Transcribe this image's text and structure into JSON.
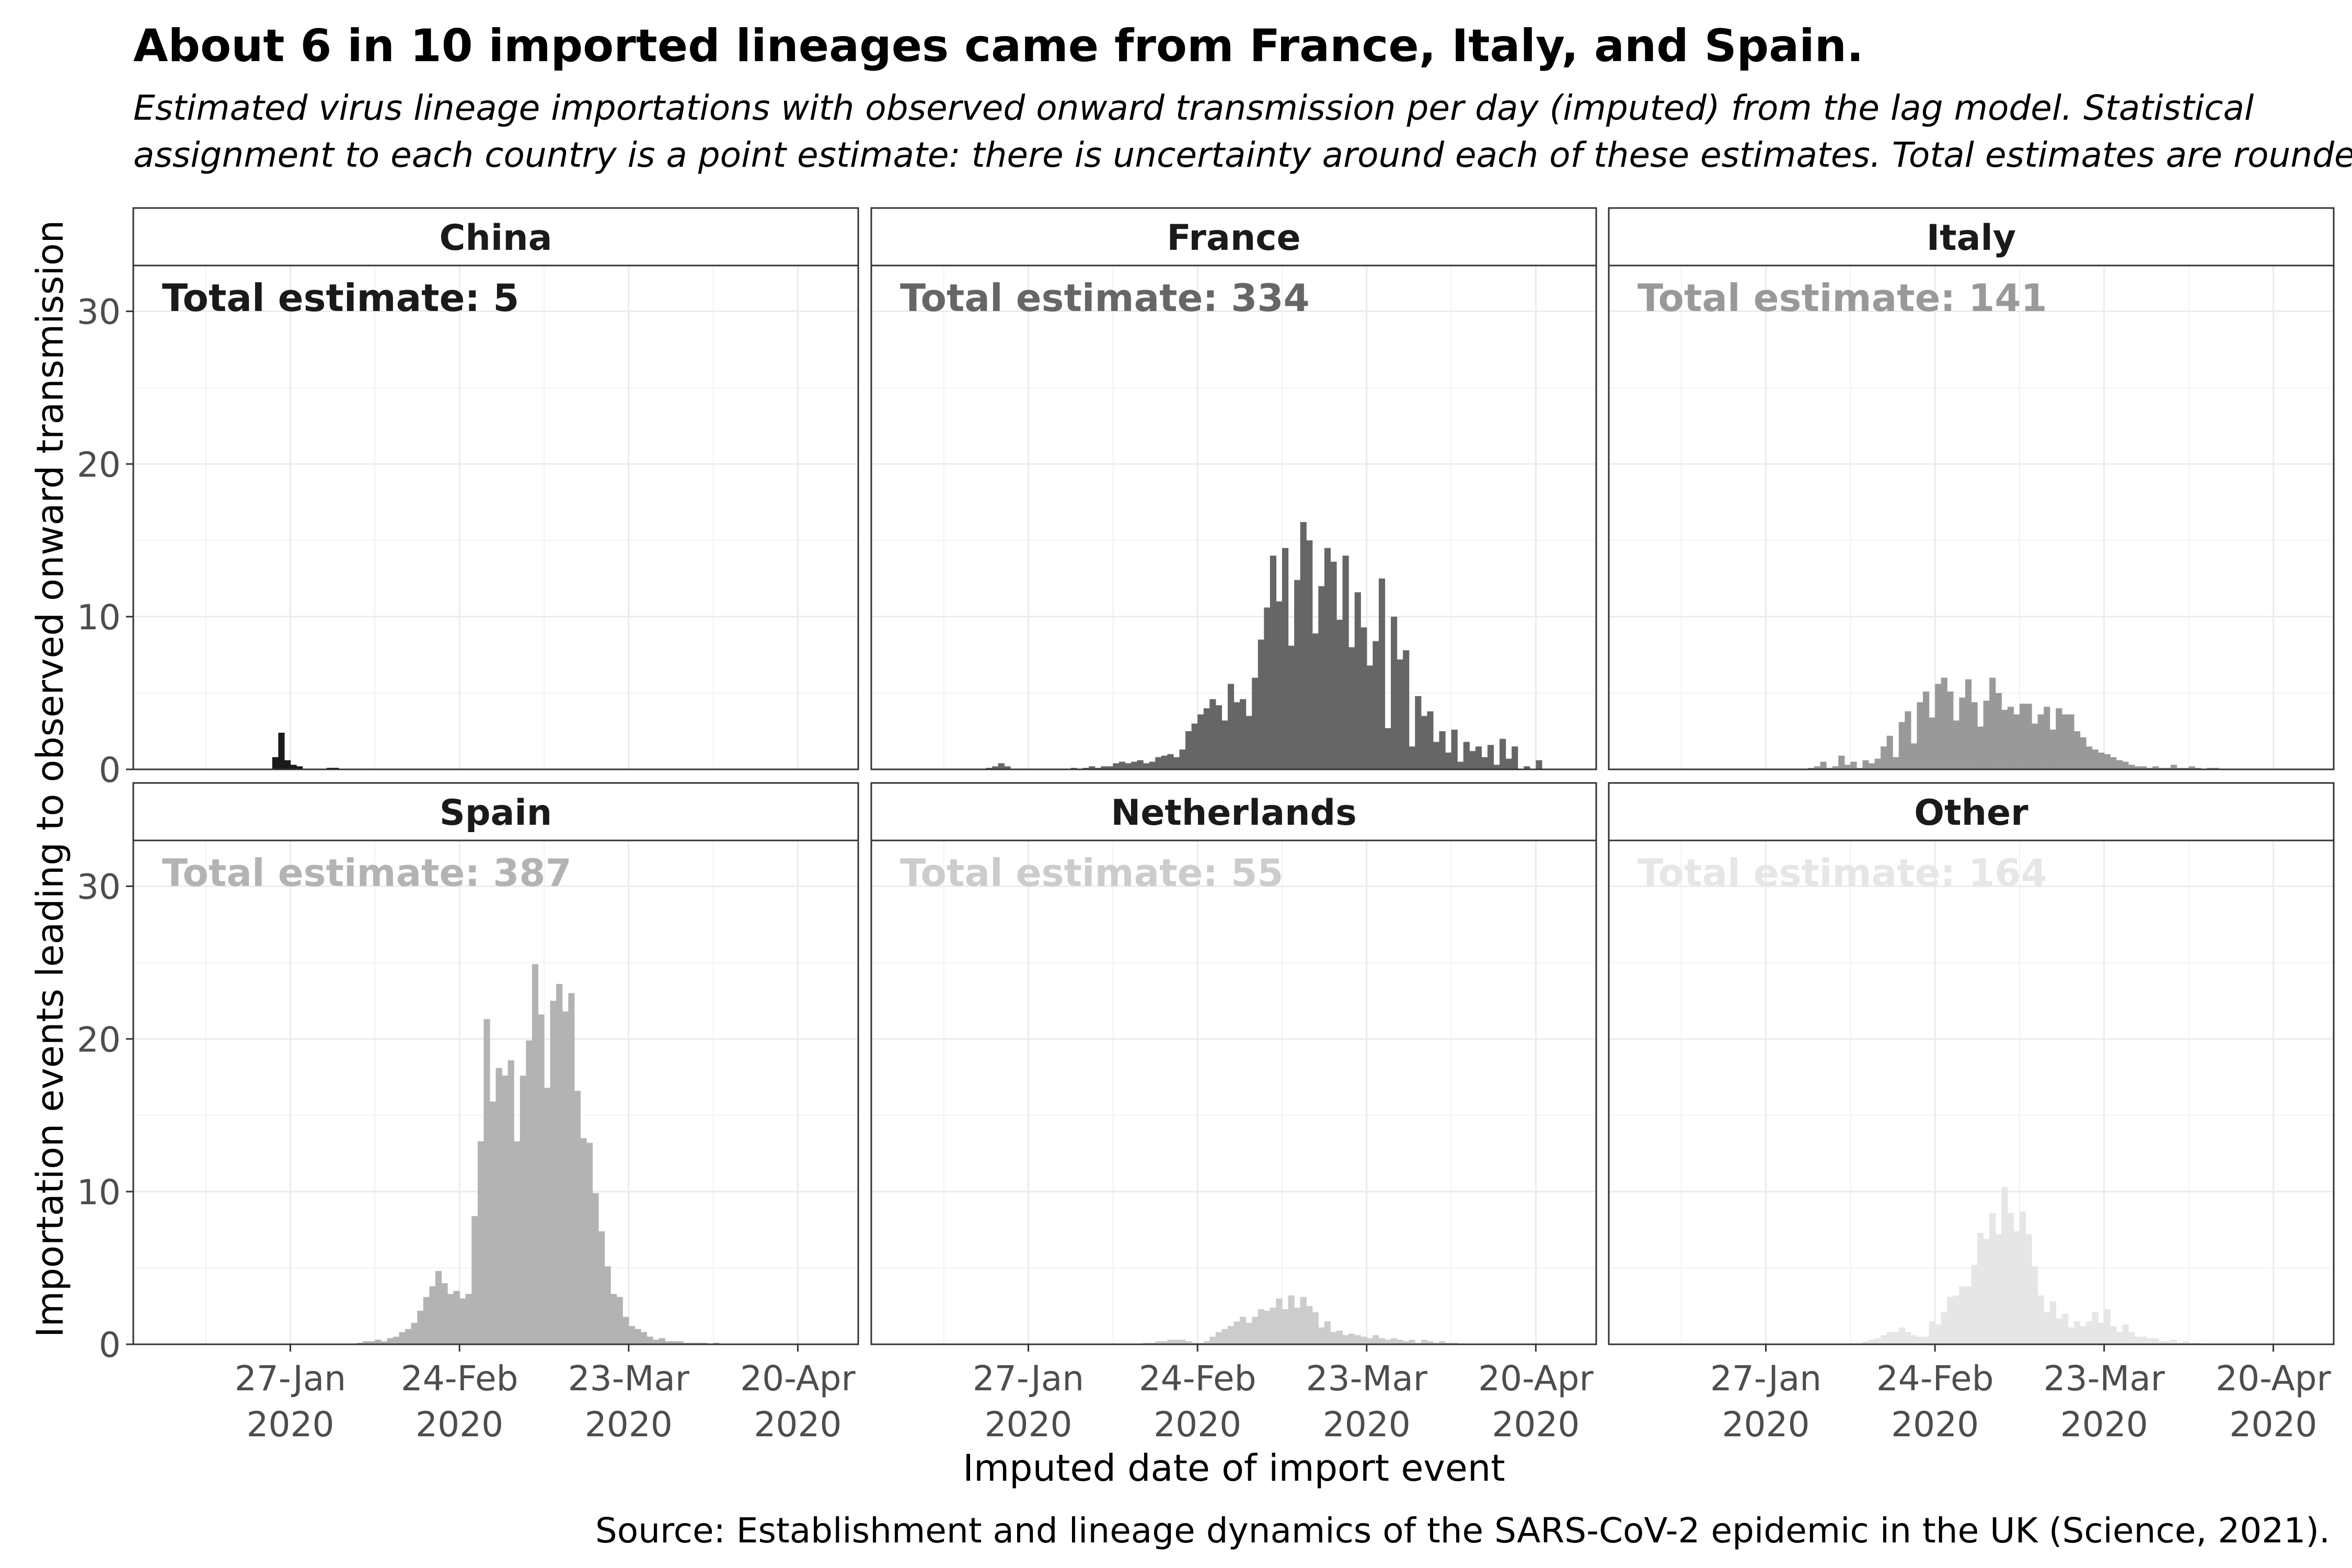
{
  "title": "About 6 in 10 imported lineages came from France, Italy, and Spain.",
  "subtitle_lines": [
    "Estimated virus lineage importations with observed onward transmission per day (imputed) from the lag model. Statistical",
    "assignment to each country is a point estimate: there is uncertainty around each of these estimates. Total estimates are rounded."
  ],
  "caption": "Source: Establishment and lineage dynamics of the SARS-CoV-2 epidemic in the UK (Science, 2021).",
  "chart_data": {
    "type": "bar",
    "layout": "facet-grid 2x3",
    "xlabel": "Imputed date of import event",
    "ylabel": "Importation events leading to observed onward transmission",
    "ylim": [
      0,
      33
    ],
    "yticks": [
      0,
      10,
      20,
      30
    ],
    "x_start_date": "2020-01-01",
    "x_end_date": "2020-04-30",
    "xticks": [
      {
        "date": "2020-01-27",
        "label": [
          "27-Jan",
          "2020"
        ]
      },
      {
        "date": "2020-02-24",
        "label": [
          "24-Feb",
          "2020"
        ]
      },
      {
        "date": "2020-03-23",
        "label": [
          "23-Mar",
          "2020"
        ]
      },
      {
        "date": "2020-04-20",
        "label": [
          "20-Apr",
          "2020"
        ]
      }
    ],
    "grid": true,
    "annotation_prefix": "Total estimate: ",
    "panels": [
      {
        "name": "China",
        "total": "5",
        "color": "#1a1a1a",
        "label_color": "#1a1a1a",
        "start_date": "2020-01-24",
        "values": [
          0.8,
          2.4,
          0.6,
          0.3,
          0.2,
          0,
          0,
          0,
          0,
          0.1,
          0.1
        ]
      },
      {
        "name": "France",
        "total": "334",
        "color": "#666666",
        "label_color": "#666666",
        "start_date": "2020-01-20",
        "values": [
          0.1,
          0.2,
          0.4,
          0.2,
          0,
          0,
          0,
          0,
          0,
          0,
          0,
          0,
          0,
          0,
          0.1,
          0,
          0.1,
          0.2,
          0.1,
          0.2,
          0.2,
          0.4,
          0.5,
          0.4,
          0.5,
          0.6,
          0.4,
          0.5,
          0.8,
          0.9,
          1,
          0.8,
          1.3,
          2.5,
          3,
          3.6,
          4,
          4.6,
          4.2,
          3.2,
          5.6,
          4.4,
          4.6,
          3.5,
          6,
          8.5,
          10.6,
          14,
          11,
          14.5,
          8.1,
          12.4,
          16.2,
          15,
          8.9,
          12,
          14.5,
          13.6,
          9.8,
          14,
          8,
          11.6,
          9.3,
          6.8,
          8.4,
          12.5,
          2.7,
          10,
          7.2,
          7.8,
          1.5,
          4.8,
          3.5,
          3.8,
          1.8,
          2.5,
          1.1,
          2.6,
          0.5,
          1.8,
          1.2,
          1.5,
          0.8,
          1.6,
          0.3,
          2,
          0.7,
          1.5,
          0,
          0.2,
          0,
          0.6
        ]
      },
      {
        "name": "Italy",
        "total": "141",
        "color": "#999999",
        "label_color": "#999999",
        "start_date": "2020-02-03",
        "values": [
          0.1,
          0.2,
          0.5,
          0.1,
          0.2,
          0.9,
          0.3,
          0.5,
          0.1,
          0.6,
          0.4,
          0.7,
          1.5,
          2.2,
          0.8,
          3.1,
          3.8,
          1.7,
          4.4,
          5.1,
          3.4,
          5.6,
          6,
          5.1,
          3.2,
          4.7,
          5.9,
          4.4,
          2.8,
          4.5,
          6,
          5,
          3.9,
          4.1,
          3.6,
          4.3,
          4.3,
          3,
          3.6,
          4.1,
          2.6,
          4,
          3.6,
          3.6,
          2.5,
          2.1,
          1.5,
          1.3,
          1.1,
          1,
          0.8,
          0.6,
          0.5,
          0.3,
          0.2,
          0.2,
          0.1,
          0.2,
          0.1,
          0.1,
          0.3,
          0.1,
          0.1,
          0.2,
          0.1,
          0,
          0.1,
          0.1
        ]
      },
      {
        "name": "Spain",
        "total": "387",
        "color": "#b3b3b3",
        "label_color": "#b3b3b3",
        "start_date": "2020-02-07",
        "values": [
          0.1,
          0.2,
          0.2,
          0.3,
          0.2,
          0.4,
          0.5,
          0.8,
          1,
          1.4,
          2.2,
          3.1,
          3.8,
          4.8,
          4,
          3.3,
          3.5,
          3,
          3.3,
          8.4,
          13.3,
          21.3,
          15.9,
          18.1,
          17.6,
          18.6,
          13.3,
          17.6,
          19.9,
          24.9,
          21.6,
          16.8,
          22.5,
          23.6,
          21.8,
          23,
          16.6,
          13.5,
          13.2,
          9.9,
          7.4,
          5.1,
          3.3,
          3.1,
          1.8,
          1.2,
          1,
          0.8,
          0.5,
          0.3,
          0.4,
          0.2,
          0.2,
          0.2,
          0.1,
          0.1,
          0.1,
          0.1,
          0,
          0.1
        ]
      },
      {
        "name": "Netherlands",
        "total": "55",
        "color": "#cccccc",
        "label_color": "#cccccc",
        "start_date": "2020-02-15",
        "values": [
          0.1,
          0.1,
          0.2,
          0.2,
          0.3,
          0.3,
          0.3,
          0.2,
          0.1,
          0.1,
          0.2,
          0.5,
          0.8,
          1,
          1.2,
          1.5,
          1.8,
          1.4,
          1.8,
          2.3,
          2.2,
          2.4,
          3,
          2.3,
          3.2,
          2.4,
          3.1,
          2.5,
          2.1,
          1.1,
          1.5,
          0.8,
          0.9,
          0.6,
          0.7,
          0.6,
          0.5,
          0.4,
          0.6,
          0.4,
          0.3,
          0.4,
          0.3,
          0.2,
          0.3,
          0.1,
          0.3,
          0.2,
          0.1,
          0.2,
          0.1,
          0.1
        ]
      },
      {
        "name": "Other",
        "total": "164",
        "color": "#e6e6e6",
        "label_color": "#e6e6e6",
        "start_date": "2020-02-12",
        "values": [
          0.2,
          0.3,
          0.4,
          0.6,
          0.8,
          0.8,
          1.1,
          0.8,
          0.6,
          0.5,
          0.5,
          1.5,
          1.3,
          2.1,
          3.1,
          3.2,
          3.8,
          3.8,
          5.2,
          7.3,
          6.9,
          8.6,
          7.2,
          10.3,
          8.6,
          7.4,
          8.7,
          7.2,
          5.1,
          3.2,
          2.1,
          2.8,
          1.7,
          2,
          1.1,
          1.5,
          1.2,
          1.5,
          2.1,
          1.4,
          2.3,
          1.2,
          0.8,
          1.3,
          0.8,
          0.5,
          0.5,
          0.4,
          0.4,
          0.2,
          0.2,
          0.3,
          0.1,
          0.2,
          0.1,
          0.1
        ]
      }
    ]
  }
}
